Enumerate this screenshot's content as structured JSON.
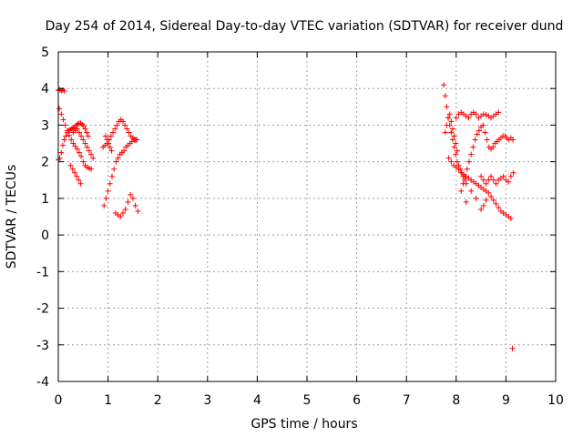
{
  "chart_data": {
    "type": "scatter",
    "title": "Day 254 of 2014, Sidereal Day-to-day VTEC variation (SDTVAR) for receiver dund",
    "xlabel": "GPS time / hours",
    "ylabel": "SDTVAR / TECUs",
    "xlim": [
      0,
      10
    ],
    "ylim": [
      -4,
      5
    ],
    "xticks": [
      0,
      1,
      2,
      3,
      4,
      5,
      6,
      7,
      8,
      9,
      10
    ],
    "yticks": [
      -4,
      -3,
      -2,
      -1,
      0,
      1,
      2,
      3,
      4,
      5
    ],
    "xtick_labels": [
      "0",
      "1",
      "2",
      "3",
      "4",
      "5",
      "6",
      "7",
      "8",
      "9",
      "10"
    ],
    "ytick_labels": [
      "-4",
      "-3",
      "-2",
      "-1",
      "0",
      "1",
      "2",
      "3",
      "4",
      "5"
    ],
    "grid": true,
    "marker": "plus",
    "color": "#ff0000",
    "series": [
      {
        "name": "sdtvar",
        "x": [
          0.0,
          0.03,
          0.06,
          0.09,
          0.12,
          0.0,
          0.03,
          0.06,
          0.09,
          0.12,
          0.15,
          0.18,
          0.21,
          0.24,
          0.27,
          0.3,
          0.33,
          0.36,
          0.39,
          0.42,
          0.45,
          0.48,
          0.51,
          0.54,
          0.57,
          0.6,
          0.02,
          0.06,
          0.1,
          0.14,
          0.18,
          0.22,
          0.26,
          0.3,
          0.34,
          0.38,
          0.42,
          0.46,
          0.5,
          0.54,
          0.58,
          0.62,
          0.66,
          0.25,
          0.29,
          0.33,
          0.37,
          0.41,
          0.45,
          0.3,
          0.34,
          0.38,
          0.42,
          0.46,
          0.5,
          0.54,
          0.58,
          0.62,
          0.66,
          0.7,
          0.9,
          0.94,
          0.98,
          1.02,
          1.06,
          1.1,
          1.14,
          1.18,
          1.22,
          1.26,
          1.3,
          1.34,
          1.38,
          1.42,
          1.46,
          1.5,
          1.54,
          1.58,
          0.92,
          0.96,
          1.0,
          1.04,
          1.08,
          1.12,
          1.16,
          1.2,
          1.24,
          1.28,
          1.32,
          1.36,
          1.4,
          1.44,
          1.48,
          1.52,
          1.56,
          0.95,
          0.98,
          1.01,
          1.04,
          1.07,
          1.15,
          1.2,
          1.25,
          1.3,
          1.35,
          1.4,
          1.45,
          1.5,
          1.55,
          1.6,
          7.75,
          7.78,
          7.81,
          7.84,
          7.87,
          7.9,
          7.93,
          7.96,
          7.99,
          8.02,
          8.05,
          8.08,
          8.11,
          8.14,
          8.17,
          8.2,
          7.78,
          7.81,
          7.84,
          7.87,
          7.9,
          7.93,
          7.96,
          7.99,
          8.02,
          8.0,
          8.05,
          8.1,
          8.15,
          8.2,
          8.25,
          8.3,
          8.35,
          8.4,
          8.45,
          8.5,
          8.55,
          8.6,
          8.65,
          8.7,
          8.75,
          8.8,
          8.85,
          7.85,
          7.9,
          7.95,
          8.0,
          8.05,
          8.1,
          8.15,
          8.2,
          8.25,
          8.3,
          8.35,
          8.4,
          8.45,
          8.5,
          8.55,
          8.6,
          8.65,
          8.7,
          8.75,
          8.8,
          8.85,
          8.9,
          8.95,
          9.0,
          9.05,
          9.1,
          8.1,
          8.14,
          8.18,
          8.22,
          8.26,
          8.3,
          8.34,
          8.38,
          8.42,
          8.46,
          8.5,
          8.54,
          8.58,
          8.62,
          8.66,
          8.7,
          8.74,
          8.78,
          8.82,
          8.86,
          8.9,
          8.94,
          8.98,
          9.02,
          9.06,
          9.1,
          9.14,
          8.5,
          8.55,
          8.6,
          8.65,
          8.7,
          8.75,
          8.8,
          8.85,
          8.9,
          8.95,
          9.0,
          9.05,
          9.1,
          9.15,
          8.2,
          8.3,
          8.4,
          8.5,
          8.55,
          8.6,
          9.13
        ],
        "y": [
          3.95,
          3.97,
          3.94,
          3.96,
          3.93,
          2.05,
          2.1,
          2.25,
          2.45,
          2.6,
          2.7,
          2.8,
          2.85,
          2.88,
          2.9,
          2.92,
          2.95,
          3.0,
          3.03,
          3.05,
          3.05,
          3.02,
          2.98,
          2.9,
          2.8,
          2.7,
          3.45,
          3.3,
          3.15,
          3.0,
          2.85,
          2.72,
          2.6,
          2.5,
          2.42,
          2.35,
          2.25,
          2.15,
          2.0,
          1.9,
          1.85,
          1.82,
          1.8,
          1.9,
          1.8,
          1.7,
          1.6,
          1.5,
          1.4,
          2.8,
          2.85,
          2.9,
          2.8,
          2.7,
          2.6,
          2.5,
          2.4,
          2.3,
          2.2,
          2.1,
          2.4,
          2.45,
          2.5,
          2.6,
          2.7,
          2.8,
          2.9,
          3.0,
          3.1,
          3.15,
          3.1,
          3.0,
          2.9,
          2.8,
          2.7,
          2.65,
          2.6,
          2.6,
          0.8,
          1.0,
          1.2,
          1.4,
          1.6,
          1.8,
          2.0,
          2.1,
          2.2,
          2.25,
          2.3,
          2.4,
          2.45,
          2.5,
          2.55,
          2.6,
          2.6,
          2.7,
          2.6,
          2.5,
          2.4,
          2.3,
          0.6,
          0.55,
          0.5,
          0.6,
          0.7,
          0.9,
          1.1,
          1.0,
          0.8,
          0.65,
          4.1,
          3.8,
          3.5,
          3.2,
          3.0,
          2.8,
          2.6,
          2.4,
          2.2,
          2.0,
          1.9,
          1.8,
          1.7,
          1.6,
          1.5,
          1.4,
          2.8,
          3.0,
          3.2,
          3.3,
          3.1,
          2.9,
          2.7,
          2.5,
          2.3,
          3.2,
          3.3,
          3.35,
          3.3,
          3.25,
          3.2,
          3.3,
          3.35,
          3.3,
          3.2,
          3.25,
          3.3,
          3.28,
          3.25,
          3.2,
          3.25,
          3.3,
          3.35,
          2.1,
          2.0,
          1.9,
          1.85,
          1.8,
          1.7,
          1.65,
          1.6,
          1.55,
          1.5,
          1.45,
          1.4,
          1.35,
          1.3,
          1.25,
          1.2,
          1.15,
          1.05,
          0.95,
          0.85,
          0.75,
          0.65,
          0.6,
          0.55,
          0.5,
          0.45,
          1.2,
          1.4,
          1.6,
          1.8,
          2.0,
          2.2,
          2.4,
          2.6,
          2.75,
          2.85,
          2.95,
          3.0,
          2.8,
          2.6,
          2.4,
          2.35,
          2.4,
          2.5,
          2.55,
          2.6,
          2.65,
          2.7,
          2.7,
          2.65,
          2.6,
          2.65,
          2.6,
          1.6,
          1.5,
          1.4,
          1.5,
          1.6,
          1.5,
          1.4,
          1.5,
          1.55,
          1.6,
          1.5,
          1.45,
          1.6,
          1.7,
          0.9,
          1.2,
          1.0,
          0.7,
          0.8,
          0.95,
          -3.1
        ]
      }
    ]
  }
}
